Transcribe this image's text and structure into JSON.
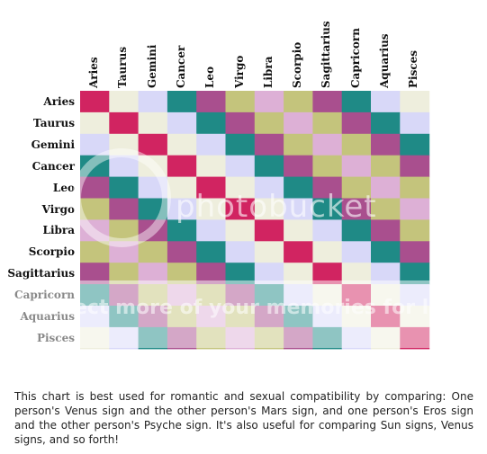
{
  "chart_data": {
    "type": "heatmap",
    "signs": [
      "Aries",
      "Taurus",
      "Gemini",
      "Cancer",
      "Leo",
      "Virgo",
      "Libra",
      "Scorpio",
      "Sagittarius",
      "Capricorn",
      "Aquarius",
      "Pisces"
    ],
    "palette": {
      "A": "#d12461",
      "B": "#eeeedd",
      "C": "#d8d8f8",
      "D": "#1f8a86",
      "E": "#a94f8e",
      "F": "#c4c47c",
      "G": "#ddb0d6"
    },
    "matrix": [
      "ABCDEFGFEDCB",
      "BABCDEFGFEDC",
      "CBABCDEFGFED",
      "DCBABCDEFGFE",
      "EDCBABCDEFGF",
      "FEDCBABCDEFG",
      "GFEDCBABCDEF",
      "FGFEDCBABCDE",
      "EFGFEDCBABCD",
      "DEFGFEDCBABC",
      "CDEFGFEDCBAB",
      "BCDEFGFEDCBA"
    ]
  },
  "watermark": {
    "brand": "photobucket",
    "slogan": "ect more of your memories for less!"
  },
  "note": "This chart is best used for romantic and sexual compatibility by comparing: One person's Venus sign and the other person's Mars sign, and one person's Eros sign and the other person's Psyche sign. It's also useful for comparing Sun signs, Venus signs, and so forth!"
}
